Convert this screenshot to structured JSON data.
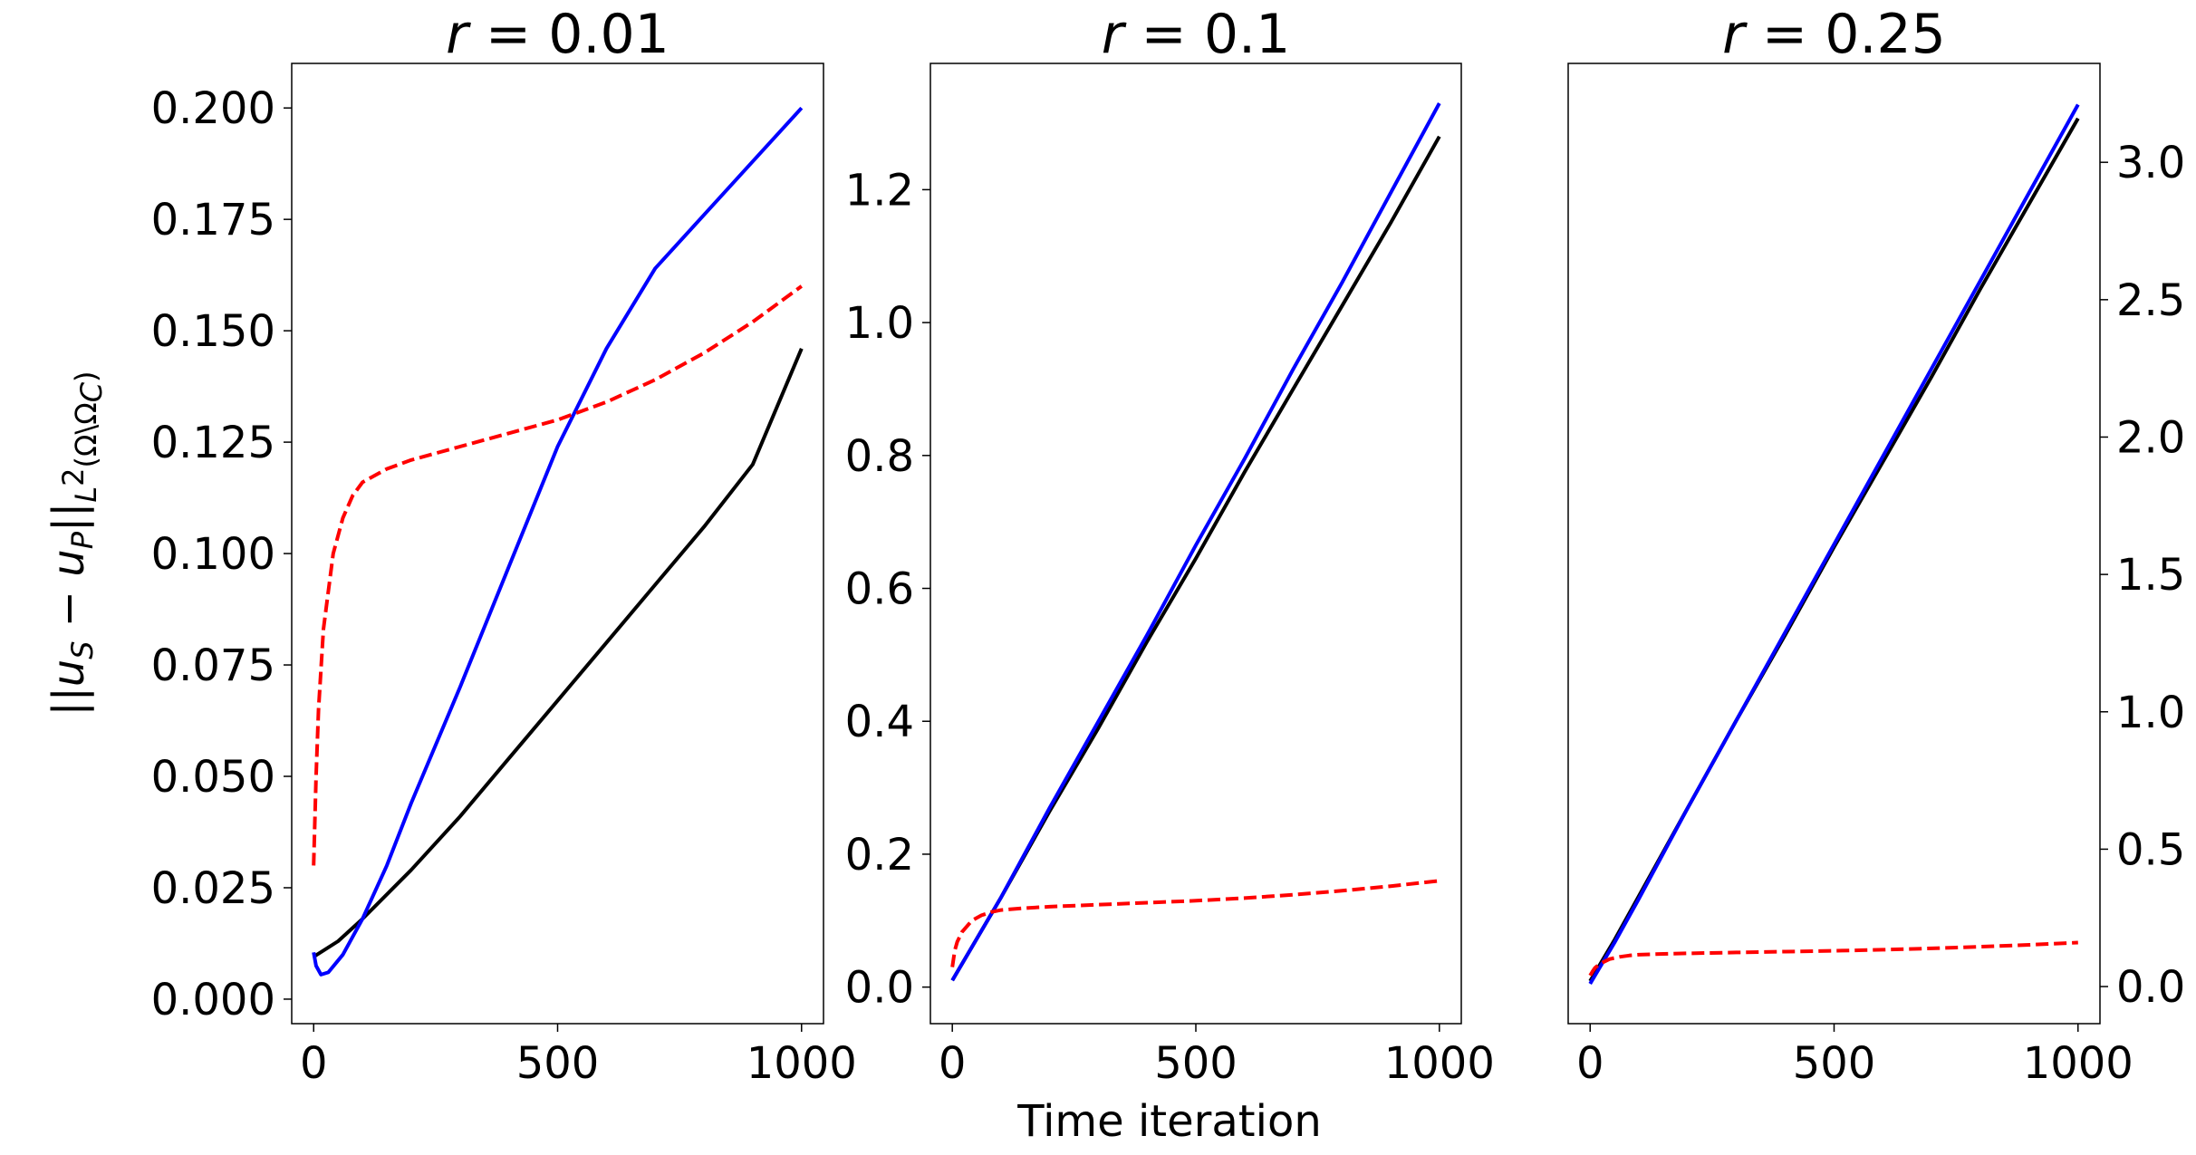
{
  "figure": {
    "xlabel": "Time iteration",
    "ylabel": {
      "bars": "||",
      "u1": "u",
      "s1": "S",
      "minus": " − ",
      "u2": "u",
      "s2": "P",
      "bars2": "||",
      "norm": "L",
      "norm_sup": "2",
      "norm_domain": "(Ω\\Ω",
      "norm_domain_sub": "C",
      "norm_close": ")"
    }
  },
  "colors": {
    "black_series": "#000000",
    "blue_series": "#0000ff",
    "red_series": "#ff0000"
  },
  "chart_data": [
    {
      "type": "line",
      "title": "r = 0.01",
      "title_var": "r",
      "title_rest": " = 0.01",
      "xlim": [
        -45,
        1045
      ],
      "ylim": [
        -0.0055,
        0.21
      ],
      "xticks": [
        0,
        500,
        1000
      ],
      "xtick_labels": [
        "0",
        "500",
        "1000"
      ],
      "yticks": [
        0.0,
        0.025,
        0.05,
        0.075,
        0.1,
        0.125,
        0.15,
        0.175,
        0.2
      ],
      "ytick_labels": [
        "0.000",
        "0.025",
        "0.050",
        "0.075",
        "0.100",
        "0.125",
        "0.150",
        "0.175",
        "0.200"
      ],
      "yaxis_side": "left",
      "series": [
        {
          "name": "black",
          "color": "#000000",
          "dashed": false,
          "x": [
            0,
            50,
            100,
            200,
            300,
            400,
            500,
            600,
            700,
            800,
            900,
            1000
          ],
          "y": [
            0.0095,
            0.013,
            0.018,
            0.029,
            0.041,
            0.054,
            0.067,
            0.08,
            0.093,
            0.106,
            0.12,
            0.146
          ]
        },
        {
          "name": "blue",
          "color": "#0000ff",
          "dashed": false,
          "x": [
            0,
            5,
            15,
            30,
            60,
            100,
            150,
            200,
            300,
            400,
            500,
            600,
            700,
            800,
            900,
            1000
          ],
          "y": [
            0.0105,
            0.0075,
            0.0055,
            0.006,
            0.01,
            0.018,
            0.03,
            0.044,
            0.07,
            0.097,
            0.124,
            0.146,
            0.164,
            0.176,
            0.188,
            0.2
          ]
        },
        {
          "name": "red-dashed",
          "color": "#ff0000",
          "dashed": true,
          "x": [
            0,
            5,
            10,
            20,
            40,
            60,
            80,
            100,
            150,
            200,
            300,
            400,
            500,
            600,
            700,
            800,
            900,
            1000
          ],
          "y": [
            0.03,
            0.05,
            0.065,
            0.083,
            0.1,
            0.108,
            0.113,
            0.116,
            0.119,
            0.121,
            0.124,
            0.127,
            0.13,
            0.134,
            0.139,
            0.145,
            0.152,
            0.16
          ]
        }
      ]
    },
    {
      "type": "line",
      "title": "r = 0.1",
      "title_var": "r",
      "title_rest": " = 0.1",
      "xlim": [
        -45,
        1045
      ],
      "ylim": [
        -0.055,
        1.39
      ],
      "xticks": [
        0,
        500,
        1000
      ],
      "xtick_labels": [
        "0",
        "500",
        "1000"
      ],
      "yticks": [
        0.0,
        0.2,
        0.4,
        0.6,
        0.8,
        1.0,
        1.2
      ],
      "ytick_labels": [
        "0.0",
        "0.2",
        "0.4",
        "0.6",
        "0.8",
        "1.0",
        "1.2"
      ],
      "yaxis_side": "left",
      "series": [
        {
          "name": "black",
          "color": "#000000",
          "dashed": false,
          "x": [
            0,
            100,
            200,
            300,
            400,
            500,
            600,
            700,
            800,
            900,
            1000
          ],
          "y": [
            0.01,
            0.135,
            0.265,
            0.39,
            0.52,
            0.645,
            0.775,
            0.9,
            1.025,
            1.15,
            1.28
          ]
        },
        {
          "name": "blue",
          "color": "#0000ff",
          "dashed": false,
          "x": [
            0,
            100,
            200,
            300,
            400,
            500,
            600,
            700,
            800,
            900,
            1000
          ],
          "y": [
            0.01,
            0.135,
            0.27,
            0.4,
            0.53,
            0.665,
            0.795,
            0.93,
            1.06,
            1.195,
            1.33
          ]
        },
        {
          "name": "red-dashed",
          "color": "#ff0000",
          "dashed": true,
          "x": [
            0,
            5,
            10,
            20,
            40,
            60,
            80,
            100,
            150,
            200,
            300,
            400,
            500,
            600,
            700,
            800,
            900,
            1000
          ],
          "y": [
            0.03,
            0.055,
            0.068,
            0.083,
            0.1,
            0.108,
            0.113,
            0.116,
            0.119,
            0.121,
            0.124,
            0.127,
            0.13,
            0.134,
            0.139,
            0.145,
            0.152,
            0.16
          ]
        }
      ]
    },
    {
      "type": "line",
      "title": "r = 0.25",
      "title_var": "r",
      "title_rest": " = 0.25",
      "xlim": [
        -45,
        1045
      ],
      "ylim": [
        -0.135,
        3.36
      ],
      "xticks": [
        0,
        500,
        1000
      ],
      "xtick_labels": [
        "0",
        "500",
        "1000"
      ],
      "yticks": [
        0.0,
        0.5,
        1.0,
        1.5,
        2.0,
        2.5,
        3.0
      ],
      "ytick_labels": [
        "0.0",
        "0.5",
        "1.0",
        "1.5",
        "2.0",
        "2.5",
        "3.0"
      ],
      "yaxis_side": "right",
      "series": [
        {
          "name": "black",
          "color": "#000000",
          "dashed": false,
          "x": [
            0,
            50,
            100,
            200,
            300,
            400,
            500,
            600,
            700,
            800,
            900,
            1000
          ],
          "y": [
            0.02,
            0.17,
            0.33,
            0.65,
            0.97,
            1.28,
            1.6,
            1.91,
            2.22,
            2.54,
            2.85,
            3.16
          ]
        },
        {
          "name": "blue",
          "color": "#0000ff",
          "dashed": false,
          "x": [
            0,
            50,
            100,
            200,
            300,
            400,
            500,
            600,
            700,
            800,
            900,
            1000
          ],
          "y": [
            0.01,
            0.16,
            0.32,
            0.65,
            0.97,
            1.29,
            1.61,
            1.93,
            2.25,
            2.57,
            2.89,
            3.21
          ]
        },
        {
          "name": "red-dashed",
          "color": "#ff0000",
          "dashed": true,
          "x": [
            0,
            5,
            10,
            20,
            40,
            60,
            80,
            100,
            150,
            200,
            300,
            400,
            500,
            600,
            700,
            800,
            900,
            1000
          ],
          "y": [
            0.04,
            0.055,
            0.068,
            0.083,
            0.1,
            0.108,
            0.113,
            0.116,
            0.119,
            0.121,
            0.124,
            0.127,
            0.13,
            0.134,
            0.139,
            0.145,
            0.152,
            0.16
          ]
        }
      ]
    }
  ]
}
